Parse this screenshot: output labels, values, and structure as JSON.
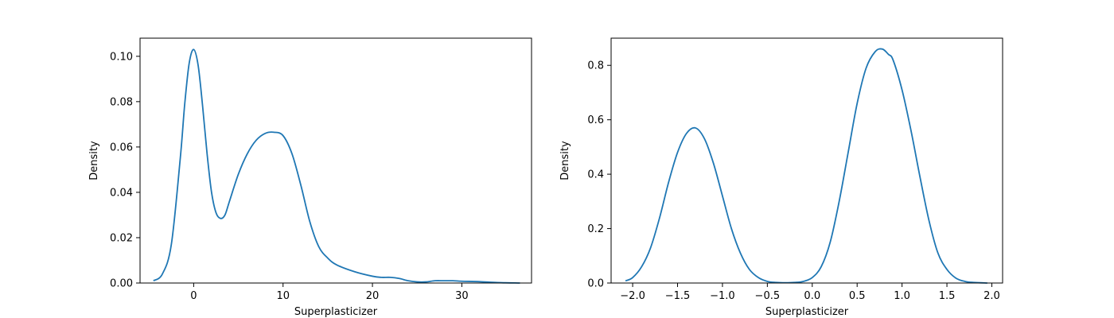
{
  "colors": {
    "line": "#1f77b4",
    "frame": "#000000",
    "background": "#ffffff"
  },
  "chart_data": [
    {
      "type": "line",
      "xlabel": "Superplasticizer",
      "ylabel": "Density",
      "xlim": [
        -6.0,
        37.8
      ],
      "ylim": [
        0.0,
        0.108
      ],
      "xticks": [
        0,
        10,
        20,
        30
      ],
      "xtick_labels": [
        "0",
        "10",
        "20",
        "30"
      ],
      "yticks": [
        0.0,
        0.02,
        0.04,
        0.06,
        0.08,
        0.1
      ],
      "ytick_labels": [
        "0.00",
        "0.02",
        "0.04",
        "0.06",
        "0.08",
        "0.10"
      ],
      "grid": false,
      "series": [
        {
          "x": [
            -4.5,
            -3.5,
            -2.5,
            -1.5,
            -1.0,
            -0.5,
            0.0,
            0.5,
            1.0,
            1.5,
            2.0,
            2.5,
            3.0,
            3.5,
            4.0,
            5.0,
            6.0,
            7.0,
            8.0,
            9.0,
            10.0,
            11.0,
            12.0,
            13.0,
            14.0,
            15.0,
            16.0,
            18.0,
            20.0,
            21.0,
            22.0,
            23.0,
            24.0,
            25.0,
            26.0,
            27.0,
            28.0,
            29.0,
            30.0,
            32.0,
            34.0,
            36.5
          ],
          "y": [
            0.001,
            0.004,
            0.017,
            0.055,
            0.079,
            0.097,
            0.103,
            0.096,
            0.078,
            0.057,
            0.04,
            0.031,
            0.0285,
            0.03,
            0.036,
            0.048,
            0.057,
            0.063,
            0.066,
            0.0665,
            0.065,
            0.057,
            0.043,
            0.027,
            0.016,
            0.011,
            0.008,
            0.005,
            0.003,
            0.0025,
            0.0025,
            0.002,
            0.001,
            0.0005,
            0.0005,
            0.001,
            0.001,
            0.001,
            0.0008,
            0.0006,
            0.0002,
            0.0
          ]
        }
      ]
    },
    {
      "type": "line",
      "xlabel": "Superplasticizer",
      "ylabel": "Density",
      "xlim": [
        -2.24,
        2.12
      ],
      "ylim": [
        0.0,
        0.9
      ],
      "xticks": [
        -2.0,
        -1.5,
        -1.0,
        -0.5,
        0.0,
        0.5,
        1.0,
        1.5,
        2.0
      ],
      "xtick_labels": [
        "−2.0",
        "−1.5",
        "−1.0",
        "−0.5",
        "0.0",
        "0.5",
        "1.0",
        "1.5",
        "2.0"
      ],
      "yticks": [
        0.0,
        0.2,
        0.4,
        0.6,
        0.8
      ],
      "ytick_labels": [
        "0.0",
        "0.2",
        "0.4",
        "0.6",
        "0.8"
      ],
      "grid": false,
      "series": [
        {
          "x": [
            -2.08,
            -2.0,
            -1.9,
            -1.8,
            -1.7,
            -1.6,
            -1.5,
            -1.4,
            -1.3,
            -1.2,
            -1.1,
            -1.0,
            -0.9,
            -0.8,
            -0.7,
            -0.6,
            -0.5,
            -0.4,
            -0.3,
            -0.2,
            -0.1,
            0.0,
            0.1,
            0.2,
            0.3,
            0.4,
            0.5,
            0.6,
            0.7,
            0.78,
            0.85,
            0.9,
            1.0,
            1.1,
            1.2,
            1.3,
            1.4,
            1.5,
            1.6,
            1.7,
            1.8,
            1.95
          ],
          "y": [
            0.008,
            0.02,
            0.06,
            0.13,
            0.24,
            0.37,
            0.48,
            0.55,
            0.57,
            0.53,
            0.44,
            0.32,
            0.2,
            0.11,
            0.05,
            0.02,
            0.006,
            0.002,
            0.001,
            0.002,
            0.006,
            0.02,
            0.06,
            0.15,
            0.3,
            0.48,
            0.66,
            0.79,
            0.85,
            0.86,
            0.84,
            0.82,
            0.71,
            0.56,
            0.39,
            0.23,
            0.11,
            0.05,
            0.018,
            0.006,
            0.002,
            0.0
          ]
        }
      ]
    }
  ]
}
